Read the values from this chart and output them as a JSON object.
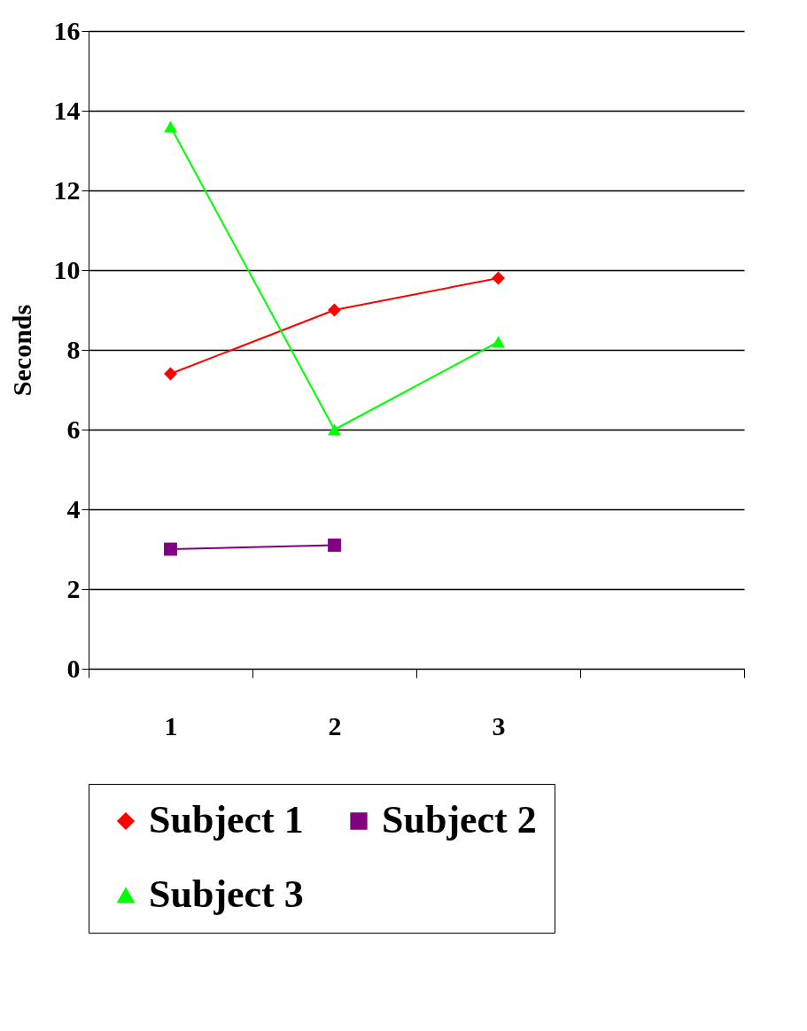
{
  "chart_data": {
    "type": "line",
    "ylabel": "Seconds",
    "categories": [
      "1",
      "2",
      "3",
      null
    ],
    "series": [
      {
        "name": "Subject 1",
        "color": "#ff0000",
        "marker": "diamond",
        "values": [
          7.4,
          9.0,
          9.8,
          null
        ]
      },
      {
        "name": "Subject 2",
        "color": "#800080",
        "marker": "square",
        "values": [
          3.0,
          3.1,
          null,
          null
        ]
      },
      {
        "name": "Subject 3",
        "color": "#00ff00",
        "marker": "triangle",
        "values": [
          13.6,
          6.0,
          8.2,
          null
        ]
      }
    ],
    "ylim": [
      0,
      16
    ],
    "yticks": [
      0,
      2,
      4,
      6,
      8,
      10,
      12,
      14,
      16
    ],
    "grid": "y",
    "legend": "bottom"
  }
}
